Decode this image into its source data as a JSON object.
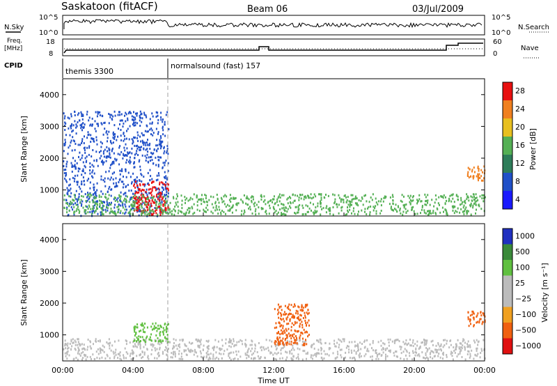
{
  "header": {
    "station": "Saskatoon (fitACF)",
    "beam": "Beam 06",
    "date": "03/Jul/2009"
  },
  "noise_panel": {
    "left_label": "N.Sky",
    "left_ticks": [
      "10^5",
      "10^0"
    ],
    "right_ticks": [
      "10^5",
      "10^0"
    ],
    "right_label": "N.Search"
  },
  "freq_panel": {
    "left_label_1": "Freq.",
    "left_label_2": "[MHz]",
    "left_ticks": [
      "18",
      "8"
    ],
    "right_ticks": [
      "60",
      "0"
    ],
    "right_label": "Nave"
  },
  "cpid_panel": {
    "label": "CPID",
    "modes": [
      {
        "name": "themis 3300",
        "start_hour": 0
      },
      {
        "name": "normalsound (fast) 157",
        "start_hour": 6
      }
    ]
  },
  "chart_data": [
    {
      "type": "heatmap",
      "quantity": "Power",
      "ylabel": "Slant Range [km]",
      "xlabel": "Time UT",
      "ylim": [
        180,
        4500
      ],
      "xlim_hours": [
        0,
        24
      ],
      "y_ticks": [
        "1000",
        "2000",
        "3000",
        "4000"
      ],
      "x_ticks": [
        "00:00",
        "04:00",
        "08:00",
        "12:00",
        "16:00",
        "20:00",
        "00:00"
      ],
      "colorbar": {
        "label": "Power [dB]",
        "ticks": [
          "4",
          "8",
          "12",
          "16",
          "20",
          "24",
          "28"
        ],
        "colors": [
          "#1a1aff",
          "#2050c8",
          "#2e7d5a",
          "#55b055",
          "#e8c020",
          "#f08020",
          "#e81010"
        ]
      },
      "features": [
        {
          "hour_start": 0.0,
          "hour_end": 6.0,
          "range_min": 200,
          "range_max": 3500,
          "level": 8,
          "description_color": "blue scatter"
        },
        {
          "hour_start": 4.0,
          "hour_end": 6.0,
          "range_min": 250,
          "range_max": 1300,
          "level": 28
        },
        {
          "hour_start": 0.0,
          "hour_end": 24.0,
          "range_min": 250,
          "range_max": 900,
          "level": 16
        },
        {
          "hour_start": 23.0,
          "hour_end": 24.0,
          "range_min": 1300,
          "range_max": 1800,
          "level": 24
        }
      ]
    },
    {
      "type": "heatmap",
      "quantity": "Velocity",
      "ylabel": "Slant Range [km]",
      "xlabel": "Time UT",
      "ylim": [
        180,
        4500
      ],
      "xlim_hours": [
        0,
        24
      ],
      "y_ticks": [
        "1000",
        "2000",
        "3000",
        "4000"
      ],
      "x_ticks": [
        "00:00",
        "04:00",
        "08:00",
        "12:00",
        "16:00",
        "20:00",
        "00:00"
      ],
      "colorbar": {
        "label": "Velocity [m s⁻¹]",
        "ticks": [
          "1000",
          "500",
          "100",
          "25",
          "−25",
          "−100",
          "−500",
          "−1000"
        ],
        "colors": [
          "#2030c0",
          "#3a8a3a",
          "#60c040",
          "#bbbbbb",
          "#bbbbbb",
          "#f0a020",
          "#f06010",
          "#e01010"
        ]
      },
      "features": [
        {
          "hour_start": 0.0,
          "hour_end": 24.0,
          "range_min": 250,
          "range_max": 900,
          "velocity": 0
        },
        {
          "hour_start": 4.0,
          "hour_end": 6.0,
          "range_min": 800,
          "range_max": 1400,
          "velocity": 100
        },
        {
          "hour_start": 12.0,
          "hour_end": 14.0,
          "range_min": 700,
          "range_max": 2000,
          "velocity": -300
        },
        {
          "hour_start": 23.0,
          "hour_end": 24.0,
          "range_min": 1300,
          "range_max": 1800,
          "velocity": -300
        }
      ]
    }
  ]
}
